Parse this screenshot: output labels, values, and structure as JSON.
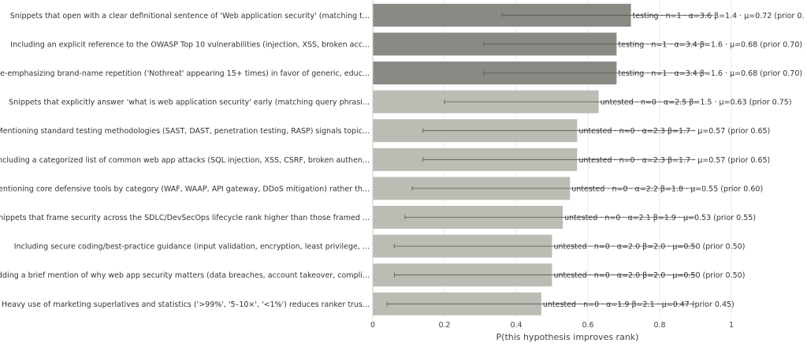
{
  "chart_data": {
    "type": "bar",
    "orientation": "horizontal",
    "xlabel": "P(this hypothesis improves rank)",
    "xlim": [
      0,
      1
    ],
    "xticks": [
      0,
      0.2,
      0.4,
      0.6,
      0.8,
      1
    ],
    "xtick_labels": [
      "0",
      "0.2",
      "0.4",
      "0.6",
      "0.8",
      "1"
    ],
    "grid": true,
    "colors": {
      "testing": "#8a8a84",
      "untested": "#bcbbb4",
      "error_bar": "#555555",
      "grid": "#e8e8e8"
    },
    "bars": [
      {
        "label": "Snippets that open with a clear definitional sentence of 'Web application security' (matching t...",
        "status": "testing",
        "value": 0.72,
        "err_low": 0.36,
        "err_high": 0.95,
        "data_label": "testing · n=1 · α=3.6 β=1.4 · μ=0.72 (prior 0."
      },
      {
        "label": "Including an explicit reference to the OWASP Top 10 vulnerabilities (injection, XSS, broken acc...",
        "status": "testing",
        "value": 0.68,
        "err_low": 0.31,
        "err_high": 0.93,
        "data_label": "testing · n=1 · α=3.4 β=1.6 · μ=0.68 (prior 0.70)"
      },
      {
        "label": "De-emphasizing brand-name repetition ('Nothreat' appearing 15+ times) in favor of generic, educ...",
        "status": "testing",
        "value": 0.68,
        "err_low": 0.31,
        "err_high": 0.93,
        "data_label": "testing · n=1 · α=3.4 β=1.6 · μ=0.68 (prior 0.70)"
      },
      {
        "label": "Snippets that explicitly answer 'what is web application security' early (matching query phrasi...",
        "status": "untested",
        "value": 0.63,
        "err_low": 0.2,
        "err_high": 0.9,
        "data_label": "untested · n=0 · α=2.5 β=1.5 · μ=0.63 (prior 0.75)"
      },
      {
        "label": "Mentioning standard testing methodologies (SAST, DAST, penetration testing, RASP) signals topic...",
        "status": "untested",
        "value": 0.57,
        "err_low": 0.14,
        "err_high": 0.9,
        "data_label": "untested · n=0 · α=2.3 β=1.7 · μ=0.57 (prior 0.65)"
      },
      {
        "label": "Including a categorized list of common web app attacks (SQL injection, XSS, CSRF, broken authen...",
        "status": "untested",
        "value": 0.57,
        "err_low": 0.14,
        "err_high": 0.9,
        "data_label": "untested · n=0 · α=2.3 β=1.7 · μ=0.57 (prior 0.65)"
      },
      {
        "label": "Mentioning core defensive tools by category (WAF, WAAP, API gateway, DDoS mitigation) rather th...",
        "status": "untested",
        "value": 0.55,
        "err_low": 0.11,
        "err_high": 0.9,
        "data_label": "untested · n=0 · α=2.2 β=1.8 · μ=0.55 (prior 0.60)"
      },
      {
        "label": "Snippets that frame security across the SDLC/DevSecOps lifecycle rank higher than those framed ...",
        "status": "untested",
        "value": 0.53,
        "err_low": 0.09,
        "err_high": 0.9,
        "data_label": "untested · n=0 · α=2.1 β=1.9 · μ=0.53 (prior 0.55)"
      },
      {
        "label": "Including secure coding/best-practice guidance (input validation, encryption, least privilege, ...",
        "status": "untested",
        "value": 0.5,
        "err_low": 0.06,
        "err_high": 0.9,
        "data_label": "untested · n=0 · α=2.0 β=2.0 · μ=0.50 (prior 0.50)"
      },
      {
        "label": "Adding a brief mention of why web app security matters (data breaches, account takeover, compli...",
        "status": "untested",
        "value": 0.5,
        "err_low": 0.06,
        "err_high": 0.9,
        "data_label": "untested · n=0 · α=2.0 β=2.0 · μ=0.50 (prior 0.50)"
      },
      {
        "label": "Heavy use of marketing superlatives and statistics ('>99%', '5–10×', '<1%') reduces ranker trus...",
        "status": "untested",
        "value": 0.47,
        "err_low": 0.04,
        "err_high": 0.9,
        "data_label": "untested · n=0 · α=1.9 β=2.1 · μ=0.47 (prior 0.45)"
      }
    ]
  }
}
